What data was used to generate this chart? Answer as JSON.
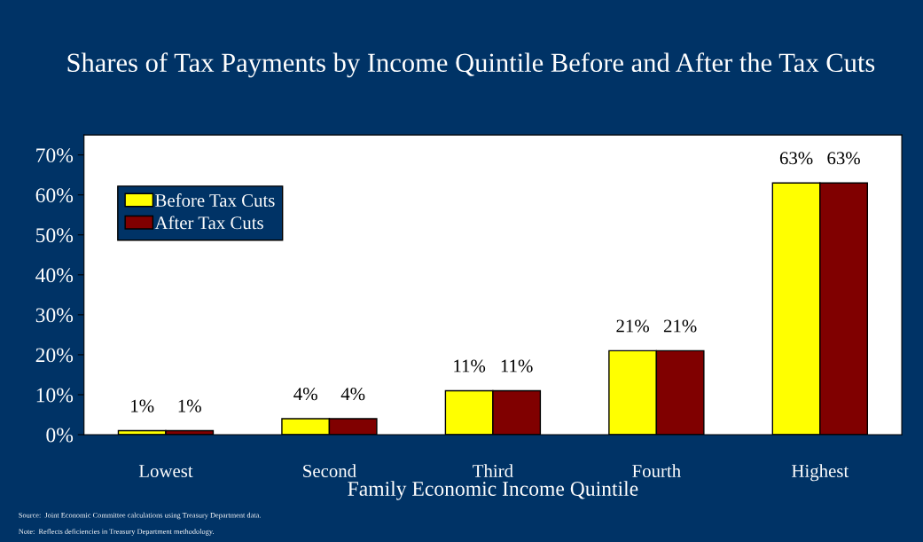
{
  "chart_data": {
    "type": "bar",
    "title": "Shares of Tax Payments by Income Quintile Before and After the Tax Cuts",
    "xlabel": "Family Economic Income Quintile",
    "categories": [
      "Lowest",
      "Second",
      "Third",
      "Fourth",
      "Highest"
    ],
    "series": [
      {
        "name": "Before Tax Cuts",
        "color": "#ffff00",
        "values": [
          1,
          4,
          11,
          21,
          63
        ],
        "value_labels": [
          "1%",
          "4%",
          "11%",
          "21%",
          "63%"
        ]
      },
      {
        "name": "After Tax Cuts",
        "color": "#800000",
        "values": [
          1,
          4,
          11,
          21,
          63
        ],
        "value_labels": [
          "1%",
          "4%",
          "11%",
          "21%",
          "63%"
        ]
      }
    ],
    "ylim": [
      0,
      75
    ],
    "yticks": [
      {
        "value": 0,
        "label": "0%"
      },
      {
        "value": 10,
        "label": "10%"
      },
      {
        "value": 20,
        "label": "20%"
      },
      {
        "value": 30,
        "label": "30%"
      },
      {
        "value": 40,
        "label": "40%"
      },
      {
        "value": 50,
        "label": "50%"
      },
      {
        "value": 60,
        "label": "60%"
      },
      {
        "value": 70,
        "label": "70%"
      }
    ],
    "grid": false,
    "legend": "top left",
    "annotations": [
      "Source:  Joint Economic Committee calculations using Treasury Department data.",
      "Note:  Reflects deficiencies in Treasury Department methodology."
    ]
  }
}
